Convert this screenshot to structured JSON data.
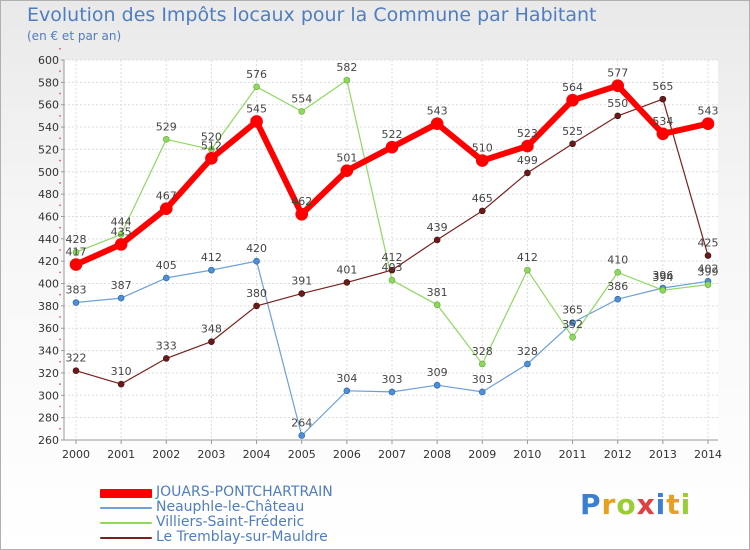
{
  "title": "Evolution des Impôts locaux pour la Commune par Habitant",
  "subtitle": "(en € et par an)",
  "logo": {
    "text": "Proxiti",
    "colors": [
      "#3a7fd0",
      "#e8a020",
      "#9acd32",
      "#e04040",
      "#3a7fd0",
      "#e8a020",
      "#9acd32"
    ]
  },
  "chart_data": {
    "type": "line",
    "title": "Evolution des Impôts locaux pour la Commune par Habitant",
    "subtitle": "(en € et par an)",
    "x": [
      "2000",
      "2001",
      "2002",
      "2003",
      "2004",
      "2005",
      "2006",
      "2007",
      "2008",
      "2009",
      "2010",
      "2011",
      "2012",
      "2013",
      "2014"
    ],
    "ylim": [
      260,
      600
    ],
    "yticks": [
      260,
      280,
      300,
      320,
      340,
      360,
      380,
      400,
      420,
      440,
      460,
      480,
      500,
      520,
      540,
      560,
      580,
      600
    ],
    "grid": true,
    "legend_position": "bottom-left",
    "series": [
      {
        "name": "JOUARS-PONTCHARTRAIN",
        "color": "#ff0000",
        "values": [
          417,
          435,
          467,
          512,
          545,
          462,
          501,
          522,
          543,
          510,
          523,
          564,
          577,
          534,
          543
        ]
      },
      {
        "name": "Neauphle-le-Château",
        "color": "#6fa0d8",
        "values": [
          383,
          387,
          405,
          412,
          420,
          264,
          304,
          303,
          309,
          303,
          328,
          365,
          386,
          396,
          402
        ]
      },
      {
        "name": "Villiers-Saint-Fréderic",
        "color": "#8fd860",
        "values": [
          428,
          444,
          529,
          520,
          576,
          554,
          582,
          403,
          381,
          328,
          412,
          352,
          410,
          394,
          399
        ]
      },
      {
        "name": "Le Tremblay-sur-Mauldre",
        "color": "#7a2020",
        "values": [
          322,
          310,
          333,
          348,
          380,
          391,
          401,
          412,
          439,
          465,
          499,
          525,
          550,
          565,
          425
        ]
      }
    ]
  }
}
